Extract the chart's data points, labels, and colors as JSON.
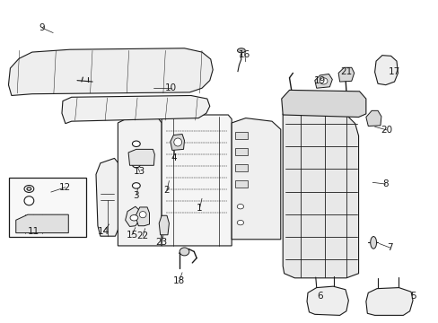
{
  "background_color": "#ffffff",
  "line_color": "#1a1a1a",
  "figsize": [
    4.89,
    3.6
  ],
  "dpi": 100,
  "label_fontsize": 7.5,
  "labels": {
    "1": [
      0.455,
      0.355,
      0.46,
      0.385
    ],
    "2": [
      0.38,
      0.41,
      0.385,
      0.44
    ],
    "3": [
      0.31,
      0.395,
      0.315,
      0.425
    ],
    "4": [
      0.395,
      0.51,
      0.398,
      0.535
    ],
    "5": [
      0.942,
      0.082,
      0.91,
      0.095
    ],
    "6": [
      0.73,
      0.082,
      0.76,
      0.095
    ],
    "7": [
      0.89,
      0.232,
      0.865,
      0.245
    ],
    "8": [
      0.88,
      0.43,
      0.85,
      0.435
    ],
    "9": [
      0.095,
      0.915,
      0.12,
      0.9
    ],
    "10": [
      0.39,
      0.73,
      0.35,
      0.73
    ],
    "11": [
      0.075,
      0.282,
      0.1,
      0.292
    ],
    "12": [
      0.148,
      0.42,
      0.115,
      0.405
    ],
    "13": [
      0.318,
      0.468,
      0.31,
      0.49
    ],
    "14": [
      0.235,
      0.282,
      0.248,
      0.305
    ],
    "15": [
      0.3,
      0.272,
      0.308,
      0.295
    ],
    "16": [
      0.558,
      0.832,
      0.56,
      0.81
    ],
    "17": [
      0.9,
      0.78,
      0.875,
      0.77
    ],
    "18": [
      0.408,
      0.128,
      0.415,
      0.155
    ],
    "19": [
      0.73,
      0.752,
      0.738,
      0.73
    ],
    "20": [
      0.882,
      0.598,
      0.855,
      0.608
    ],
    "21": [
      0.79,
      0.778,
      0.792,
      0.758
    ],
    "22": [
      0.325,
      0.268,
      0.33,
      0.292
    ],
    "23": [
      0.368,
      0.248,
      0.372,
      0.27
    ]
  }
}
